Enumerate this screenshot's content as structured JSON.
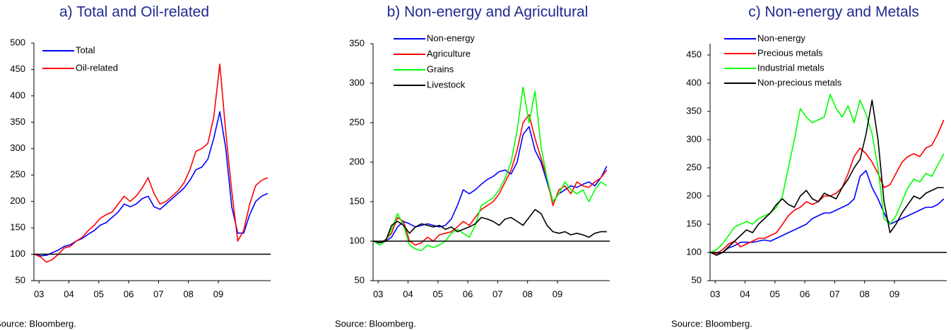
{
  "chart_data": [
    {
      "type": "line",
      "title": "a) Total and Oil-related",
      "note": "Source: Bloomberg.",
      "x": [
        2002.85,
        2003.05,
        2003.25,
        2003.45,
        2003.65,
        2003.85,
        2004.05,
        2004.25,
        2004.45,
        2004.65,
        2004.85,
        2005.05,
        2005.25,
        2005.45,
        2005.65,
        2005.85,
        2006.05,
        2006.25,
        2006.45,
        2006.65,
        2006.85,
        2007.05,
        2007.25,
        2007.45,
        2007.65,
        2007.85,
        2008.05,
        2008.25,
        2008.45,
        2008.65,
        2008.85,
        2009.05,
        2009.25,
        2009.45,
        2009.65,
        2009.85,
        2010.05,
        2010.25,
        2010.45,
        2010.65
      ],
      "series": [
        {
          "name": "Total",
          "color": "#0000ff",
          "values": [
            100,
            97,
            98,
            103,
            108,
            115,
            118,
            125,
            130,
            138,
            145,
            155,
            160,
            170,
            180,
            195,
            190,
            195,
            205,
            210,
            190,
            185,
            195,
            205,
            215,
            225,
            240,
            260,
            265,
            280,
            320,
            370,
            300,
            190,
            140,
            140,
            175,
            200,
            210,
            215
          ]
        },
        {
          "name": "Oil-related",
          "color": "#ff0000",
          "values": [
            100,
            95,
            85,
            90,
            100,
            112,
            115,
            125,
            132,
            145,
            155,
            168,
            175,
            180,
            195,
            210,
            200,
            210,
            225,
            245,
            215,
            195,
            200,
            210,
            220,
            235,
            260,
            295,
            300,
            310,
            360,
            460,
            330,
            220,
            125,
            145,
            195,
            230,
            240,
            245
          ]
        }
      ],
      "xlim": [
        2002.83,
        2010.75
      ],
      "ylim": [
        50,
        500
      ],
      "xticks": [
        {
          "value": 2003,
          "label": "03"
        },
        {
          "value": 2004,
          "label": "04"
        },
        {
          "value": 2005,
          "label": "05"
        },
        {
          "value": 2006,
          "label": "06"
        },
        {
          "value": 2007,
          "label": "07"
        },
        {
          "value": 2008,
          "label": "08"
        },
        {
          "value": 2009,
          "label": "09"
        }
      ],
      "yticks": [
        50,
        100,
        150,
        200,
        250,
        300,
        350,
        400,
        450,
        500
      ],
      "hline": 100,
      "legend": "upper-left"
    },
    {
      "type": "line",
      "title": "b) Non-energy and Agricultural",
      "note": "Source: Bloomberg.",
      "x": [
        2002.85,
        2003.05,
        2003.25,
        2003.45,
        2003.65,
        2003.85,
        2004.05,
        2004.25,
        2004.45,
        2004.65,
        2004.85,
        2005.05,
        2005.25,
        2005.45,
        2005.65,
        2005.85,
        2006.05,
        2006.25,
        2006.45,
        2006.65,
        2006.85,
        2007.05,
        2007.25,
        2007.45,
        2007.65,
        2007.85,
        2008.05,
        2008.25,
        2008.45,
        2008.65,
        2008.85,
        2009.05,
        2009.25,
        2009.45,
        2009.65,
        2009.85,
        2010.05,
        2010.25,
        2010.45,
        2010.65
      ],
      "series": [
        {
          "name": "Non-energy",
          "color": "#0000ff",
          "values": [
            100,
            98,
            100,
            105,
            118,
            125,
            122,
            118,
            120,
            122,
            120,
            118,
            120,
            128,
            145,
            165,
            160,
            165,
            172,
            178,
            182,
            188,
            190,
            185,
            200,
            235,
            245,
            215,
            200,
            175,
            150,
            160,
            165,
            170,
            168,
            172,
            175,
            170,
            180,
            195
          ]
        },
        {
          "name": "Agriculture",
          "color": "#ff0000",
          "values": [
            100,
            98,
            102,
            110,
            130,
            125,
            100,
            95,
            98,
            105,
            100,
            108,
            110,
            112,
            118,
            125,
            120,
            130,
            140,
            145,
            150,
            160,
            175,
            190,
            215,
            250,
            260,
            230,
            205,
            180,
            145,
            165,
            170,
            160,
            175,
            170,
            168,
            175,
            180,
            190
          ]
        },
        {
          "name": "Grains",
          "color": "#00ff00",
          "values": [
            100,
            95,
            100,
            115,
            135,
            120,
            95,
            90,
            88,
            95,
            92,
            95,
            100,
            110,
            115,
            110,
            105,
            120,
            145,
            150,
            155,
            165,
            180,
            200,
            240,
            295,
            250,
            290,
            220,
            180,
            150,
            160,
            175,
            165,
            160,
            165,
            150,
            165,
            175,
            170
          ]
        },
        {
          "name": "Livestock",
          "color": "#000000",
          "values": [
            100,
            98,
            100,
            120,
            125,
            120,
            110,
            118,
            122,
            120,
            118,
            120,
            115,
            118,
            112,
            115,
            118,
            122,
            130,
            128,
            125,
            120,
            128,
            130,
            125,
            120,
            130,
            140,
            135,
            120,
            112,
            110,
            112,
            108,
            110,
            108,
            105,
            110,
            112,
            112
          ]
        }
      ],
      "xlim": [
        2002.83,
        2010.75
      ],
      "ylim": [
        50,
        350
      ],
      "xticks": [
        {
          "value": 2003,
          "label": "03"
        },
        {
          "value": 2004,
          "label": "04"
        },
        {
          "value": 2005,
          "label": "05"
        },
        {
          "value": 2006,
          "label": "06"
        },
        {
          "value": 2007,
          "label": "07"
        },
        {
          "value": 2008,
          "label": "08"
        },
        {
          "value": 2009,
          "label": "09"
        }
      ],
      "yticks": [
        50,
        100,
        150,
        200,
        250,
        300,
        350
      ],
      "hline": 100,
      "legend": "upper-left"
    },
    {
      "type": "line",
      "title": "c) Non-energy and Metals",
      "note": "Source: Bloomberg.",
      "x": [
        2002.85,
        2003.05,
        2003.25,
        2003.45,
        2003.65,
        2003.85,
        2004.05,
        2004.25,
        2004.45,
        2004.65,
        2004.85,
        2005.05,
        2005.25,
        2005.45,
        2005.65,
        2005.85,
        2006.05,
        2006.25,
        2006.45,
        2006.65,
        2006.85,
        2007.05,
        2007.25,
        2007.45,
        2007.65,
        2007.85,
        2008.05,
        2008.25,
        2008.45,
        2008.65,
        2008.85,
        2009.05,
        2009.25,
        2009.45,
        2009.65,
        2009.85,
        2010.05,
        2010.25,
        2010.45,
        2010.65
      ],
      "series": [
        {
          "name": "Non-energy",
          "color": "#0000ff",
          "values": [
            100,
            98,
            100,
            108,
            112,
            118,
            118,
            118,
            120,
            122,
            120,
            125,
            130,
            135,
            140,
            145,
            150,
            160,
            165,
            170,
            170,
            175,
            180,
            185,
            195,
            235,
            245,
            215,
            195,
            170,
            150,
            155,
            160,
            165,
            170,
            175,
            180,
            180,
            185,
            195
          ]
        },
        {
          "name": "Precious metals",
          "color": "#ff0000",
          "values": [
            100,
            98,
            105,
            115,
            120,
            110,
            115,
            120,
            125,
            125,
            130,
            135,
            150,
            165,
            175,
            180,
            190,
            185,
            190,
            200,
            200,
            205,
            215,
            240,
            270,
            285,
            275,
            260,
            240,
            215,
            220,
            240,
            260,
            270,
            275,
            270,
            285,
            290,
            310,
            335
          ]
        },
        {
          "name": "Industrial metals",
          "color": "#00ff00",
          "values": [
            100,
            105,
            115,
            130,
            145,
            150,
            155,
            150,
            160,
            165,
            170,
            180,
            200,
            250,
            300,
            355,
            340,
            330,
            335,
            340,
            380,
            355,
            340,
            360,
            330,
            370,
            345,
            310,
            250,
            160,
            150,
            165,
            190,
            215,
            230,
            225,
            240,
            235,
            255,
            275
          ]
        },
        {
          "name": "Non-precious metals",
          "color": "#000000",
          "values": [
            100,
            95,
            100,
            110,
            120,
            130,
            140,
            135,
            150,
            160,
            170,
            185,
            195,
            185,
            180,
            200,
            210,
            195,
            190,
            205,
            200,
            195,
            215,
            230,
            250,
            265,
            310,
            370,
            300,
            190,
            135,
            150,
            170,
            185,
            200,
            195,
            205,
            210,
            215,
            215
          ]
        }
      ],
      "xlim": [
        2002.83,
        2010.75
      ],
      "ylim": [
        50,
        470
      ],
      "xticks": [
        {
          "value": 2003,
          "label": "03"
        },
        {
          "value": 2004,
          "label": "04"
        },
        {
          "value": 2005,
          "label": "05"
        },
        {
          "value": 2006,
          "label": "06"
        },
        {
          "value": 2007,
          "label": "07"
        },
        {
          "value": 2008,
          "label": "08"
        },
        {
          "value": 2009,
          "label": "09"
        }
      ],
      "yticks": [
        50,
        100,
        150,
        200,
        250,
        300,
        350,
        400,
        450
      ],
      "hline": 100,
      "legend": "upper-left"
    }
  ]
}
